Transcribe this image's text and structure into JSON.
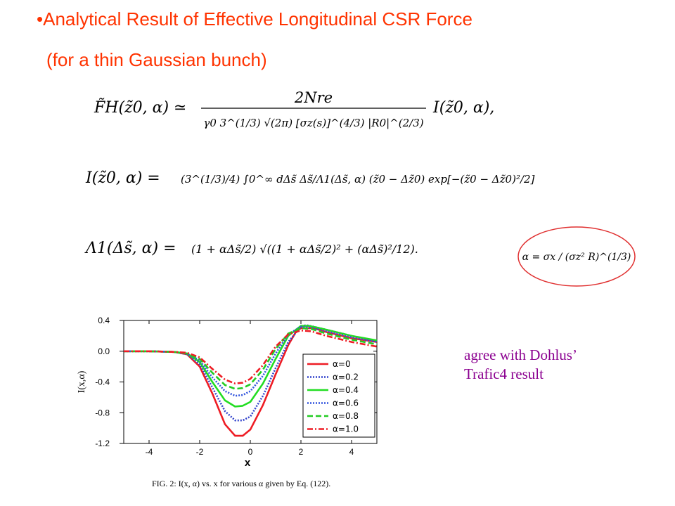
{
  "slide": {
    "title": "•Analytical Result of Effective Longitudinal  CSR Force",
    "subtitle": "(for a thin Gaussian bunch)",
    "note_line1": "agree with Dohlus’",
    "note_line2": "Trafic4 result",
    "caption": "FIG. 2: I(x, α) vs. x for various α given by Eq. (122)."
  },
  "equations": {
    "force_lhs": "F̃H(z̃0, α) ≃",
    "force_num": "2Nre",
    "force_den": "γ0 3^(1/3) √(2π) [σz(s)]^(4/3) |R0|^(2/3)",
    "force_rhs": "I(z̃0, α),",
    "integral_lhs": "I(z̃0, α) =",
    "integral_rhs": "(3^(1/3)/4) ∫0^∞ dΔs̃ Δs̃/Λ1(Δs̃, α) (z̃0 − Δz̃0) exp[−(z̃0 − Δz̃0)²/2]",
    "lambda_lhs": "Λ1(Δs̃, α) =",
    "lambda_rhs": "(1 + αΔs̃/2) √((1 + αΔs̃/2)² + (αΔs̃)²/12).",
    "alpha_def": "α = σx / (σz² R)^(1/3)"
  },
  "colors": {
    "title": "#ff3300",
    "note": "#8b0090",
    "ellipse": "#e03030"
  },
  "chart_data": {
    "type": "line",
    "xlabel": "x",
    "ylabel": "I(x,α)",
    "xlim": [
      -5,
      5
    ],
    "ylim": [
      -1.2,
      0.4
    ],
    "xticks": [
      "-4",
      "-2",
      "0",
      "2",
      "4"
    ],
    "yticks": [
      "0.4",
      "0.0",
      "-0.4",
      "-0.8",
      "-1.2"
    ],
    "grid": false,
    "legend_position": "bottom-right",
    "series": [
      {
        "name": "α=0",
        "color": "#ee1c24",
        "dash": "solid",
        "x": [
          -5,
          -4,
          -3,
          -2.5,
          -2,
          -1.5,
          -1,
          -0.6,
          -0.3,
          0,
          0.5,
          1,
          1.5,
          1.8,
          2,
          2.5,
          3,
          4,
          5
        ],
        "y": [
          0,
          0,
          -0.01,
          -0.04,
          -0.2,
          -0.55,
          -0.95,
          -1.1,
          -1.1,
          -1.02,
          -0.7,
          -0.3,
          0.08,
          0.25,
          0.3,
          0.3,
          0.25,
          0.17,
          0.12
        ]
      },
      {
        "name": "α=0.2",
        "color": "#3344cc",
        "dash": "dotted",
        "x": [
          -5,
          -4,
          -3,
          -2.5,
          -2,
          -1.5,
          -1,
          -0.6,
          -0.3,
          0,
          0.5,
          1,
          1.5,
          2,
          2.2,
          2.5,
          3,
          4,
          5
        ],
        "y": [
          0,
          0,
          -0.01,
          -0.04,
          -0.17,
          -0.47,
          -0.78,
          -0.9,
          -0.9,
          -0.85,
          -0.58,
          -0.22,
          0.12,
          0.32,
          0.34,
          0.32,
          0.28,
          0.2,
          0.13
        ]
      },
      {
        "name": "α=0.4",
        "color": "#22dd22",
        "dash": "solid",
        "x": [
          -5,
          -4,
          -3,
          -2.5,
          -2,
          -1.5,
          -1,
          -0.6,
          -0.3,
          0,
          0.5,
          1,
          1.5,
          2,
          2.3,
          2.6,
          3,
          4,
          5
        ],
        "y": [
          0,
          0,
          -0.01,
          -0.03,
          -0.14,
          -0.4,
          -0.64,
          -0.72,
          -0.71,
          -0.66,
          -0.42,
          -0.1,
          0.2,
          0.33,
          0.33,
          0.31,
          0.28,
          0.2,
          0.14
        ]
      },
      {
        "name": "α=0.6",
        "color": "#3355dd",
        "dash": "dotted",
        "x": [
          -5,
          -4,
          -3,
          -2.5,
          -2,
          -1.5,
          -1,
          -0.6,
          -0.3,
          0,
          0.5,
          1,
          1.5,
          2,
          2.3,
          2.6,
          3,
          4,
          5
        ],
        "y": [
          0,
          0,
          -0.01,
          -0.03,
          -0.12,
          -0.34,
          -0.52,
          -0.58,
          -0.57,
          -0.52,
          -0.32,
          -0.03,
          0.22,
          0.32,
          0.31,
          0.29,
          0.26,
          0.18,
          0.12
        ]
      },
      {
        "name": "α=0.8",
        "color": "#22cc22",
        "dash": "dashed",
        "x": [
          -5,
          -4,
          -3,
          -2.5,
          -2,
          -1.5,
          -1,
          -0.6,
          -0.3,
          0,
          0.5,
          1,
          1.5,
          2,
          2.4,
          2.7,
          3,
          4,
          5
        ],
        "y": [
          0,
          0,
          -0.01,
          -0.03,
          -0.1,
          -0.28,
          -0.44,
          -0.49,
          -0.48,
          -0.43,
          -0.24,
          0.03,
          0.23,
          0.3,
          0.29,
          0.26,
          0.23,
          0.15,
          0.09
        ]
      },
      {
        "name": "α=1.0",
        "color": "#ee1c24",
        "dash": "dashdot",
        "x": [
          -5,
          -4,
          -3,
          -2.5,
          -2,
          -1.5,
          -1,
          -0.6,
          -0.3,
          0,
          0.5,
          1,
          1.5,
          2,
          2.4,
          2.7,
          3,
          4,
          5
        ],
        "y": [
          0,
          0,
          -0.01,
          -0.02,
          -0.08,
          -0.23,
          -0.37,
          -0.42,
          -0.41,
          -0.36,
          -0.18,
          0.06,
          0.22,
          0.27,
          0.26,
          0.23,
          0.2,
          0.12,
          0.06
        ]
      }
    ]
  }
}
